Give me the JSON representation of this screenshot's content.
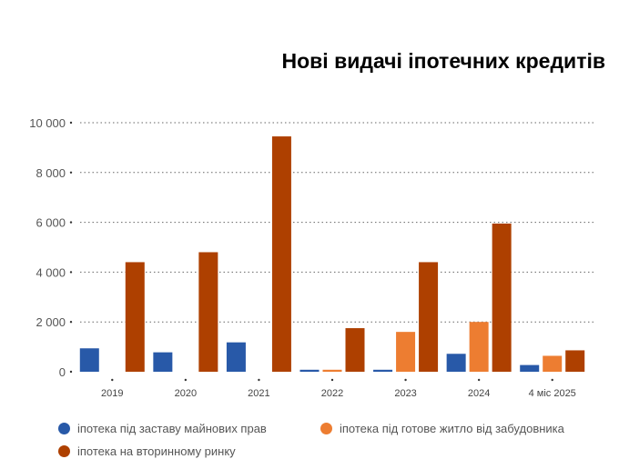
{
  "chart_data": {
    "type": "bar",
    "title": "Нові видачі іпотечних кредитів",
    "xlabel": "",
    "ylabel": "",
    "ylim": [
      0,
      10000
    ],
    "yticks": [
      0,
      2000,
      4000,
      6000,
      8000,
      10000
    ],
    "ytick_labels": [
      "0",
      "2 000",
      "4 000",
      "6 000",
      "8 000",
      "10 000"
    ],
    "grid": true,
    "legend_position": "bottom-left",
    "categories": [
      "2019",
      "2020",
      "2021",
      "2022",
      "2023",
      "2024",
      "4 міс 2025"
    ],
    "series": [
      {
        "name": "іпотека під заставу майнових прав",
        "color": "#2859a8",
        "values": [
          940,
          780,
          1180,
          80,
          80,
          720,
          270
        ]
      },
      {
        "name": "іпотека під готове житло від забудовника",
        "color": "#ed7d31",
        "values": [
          null,
          null,
          null,
          80,
          1600,
          2000,
          640
        ]
      },
      {
        "name": "іпотека на вторинному ринку",
        "color": "#ae4000",
        "values": [
          4400,
          4800,
          9450,
          1750,
          4400,
          5950,
          860
        ]
      }
    ]
  }
}
